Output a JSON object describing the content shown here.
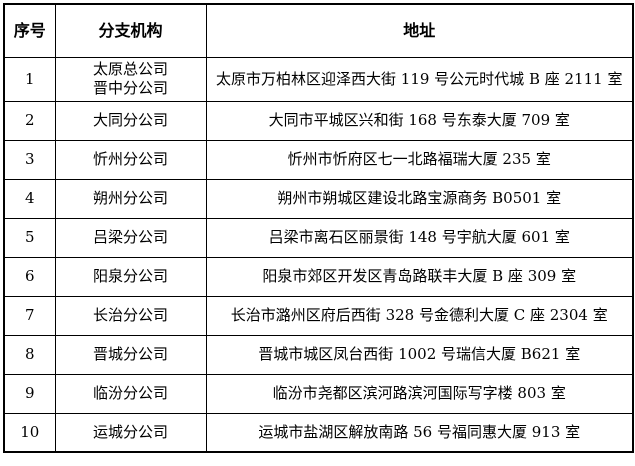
{
  "table": {
    "headers": {
      "no": "序号",
      "branch": "分支机构",
      "address": "地址"
    },
    "rows": [
      {
        "no": "1",
        "branch": [
          "太原总公司",
          "晋中分公司"
        ],
        "address": "太原市万柏林区迎泽西大街 119 号公元时代城 B 座 2111 室"
      },
      {
        "no": "2",
        "branch": [
          "大同分公司"
        ],
        "address": "大同市平城区兴和街 168 号东泰大厦 709 室"
      },
      {
        "no": "3",
        "branch": [
          "忻州分公司"
        ],
        "address": "忻州市忻府区七一北路福瑞大厦 235 室"
      },
      {
        "no": "4",
        "branch": [
          "朔州分公司"
        ],
        "address": "朔州市朔城区建设北路宝源商务 B0501 室"
      },
      {
        "no": "5",
        "branch": [
          "吕梁分公司"
        ],
        "address": "吕梁市离石区丽景街 148 号宇航大厦 601 室"
      },
      {
        "no": "6",
        "branch": [
          "阳泉分公司"
        ],
        "address": "阳泉市郊区开发区青岛路联丰大厦 B 座 309 室"
      },
      {
        "no": "7",
        "branch": [
          "长治分公司"
        ],
        "address": "长治市潞州区府后西街 328 号金德利大厦 C 座 2304 室"
      },
      {
        "no": "8",
        "branch": [
          "晋城分公司"
        ],
        "address": "晋城市城区凤台西街 1002 号瑞信大厦 B621 室"
      },
      {
        "no": "9",
        "branch": [
          "临汾分公司"
        ],
        "address": "临汾市尧都区滨河路滨河国际写字楼 803 室"
      },
      {
        "no": "10",
        "branch": [
          "运城分公司"
        ],
        "address": "运城市盐湖区解放南路 56 号福同惠大厦 913 室"
      }
    ],
    "colors": {
      "text": "#000000",
      "border": "#000000",
      "background": "#ffffff"
    }
  }
}
